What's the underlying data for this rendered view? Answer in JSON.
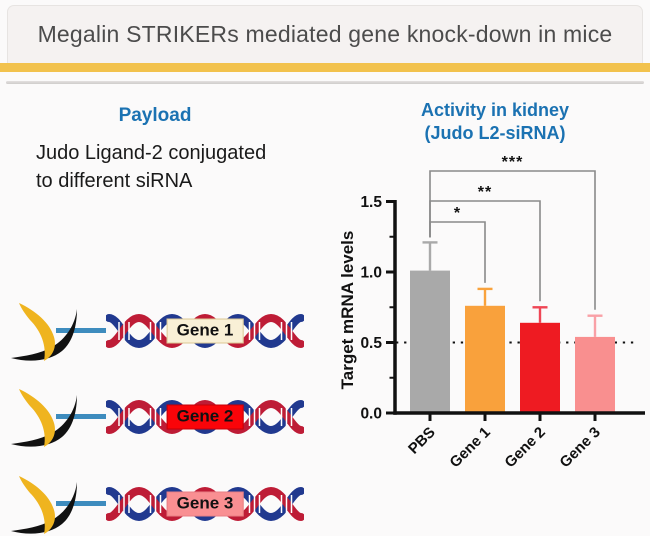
{
  "window": {
    "title": "Megalin STRIKERs mediated gene knock-down in mice"
  },
  "theme": {
    "accent_bar": "#F2C24D",
    "heading_blue": "#1B72B2",
    "title_text": "#4C4C4C"
  },
  "payload_panel": {
    "heading": "Payload",
    "description": "Judo Ligand-2 conjugated\nto  different siRNA",
    "ligand_rows": [
      {
        "gene": "Gene 1",
        "box_bg": "#F9F0D6",
        "box_border": "#DCC894"
      },
      {
        "gene": "Gene 2",
        "box_bg": "#FA0409",
        "box_border": "#C40008"
      },
      {
        "gene": "Gene 3",
        "box_bg": "#F98F92",
        "box_border": "#E87F84"
      }
    ],
    "ligand_colors": {
      "crescent_yellow": "#EFB41F",
      "crescent_black": "#111111",
      "connector_blue": "#3E8CBE",
      "helix_red": "#BE1C36",
      "helix_blue": "#21398F"
    }
  },
  "activity_panel": {
    "heading_line1": "Activity in kidney",
    "heading_line2": "(Judo L2-siRNA)"
  },
  "chart_data": {
    "type": "bar",
    "title": "Activity in kidney (Judo L2-siRNA)",
    "xlabel": "",
    "ylabel": "Target  mRNA levels",
    "categories": [
      "PBS",
      "Gene 1",
      "Gene 2",
      "Gene 3"
    ],
    "values": [
      1.01,
      0.76,
      0.64,
      0.54
    ],
    "errors_upper": [
      0.2,
      0.12,
      0.11,
      0.15
    ],
    "bar_colors": [
      "#A9A9A9",
      "#F9A13C",
      "#EE1B22",
      "#F98F8F"
    ],
    "error_colors": [
      "#A9A9A9",
      "#F9A23C",
      "#EF4655",
      "#F9A0A6"
    ],
    "ylim": [
      0,
      1.5
    ],
    "yticks": [
      0,
      0.5,
      1,
      1.5
    ],
    "minor_yticks": [
      0.25,
      0.75,
      1.25
    ],
    "reference_line": 0.5,
    "reference_line_style": "dotted",
    "significance": [
      {
        "from": "PBS",
        "to": "Gene 1",
        "label": "*"
      },
      {
        "from": "PBS",
        "to": "Gene 2",
        "label": "**"
      },
      {
        "from": "PBS",
        "to": "Gene 3",
        "label": "***"
      }
    ],
    "grid": false,
    "legend": false
  }
}
